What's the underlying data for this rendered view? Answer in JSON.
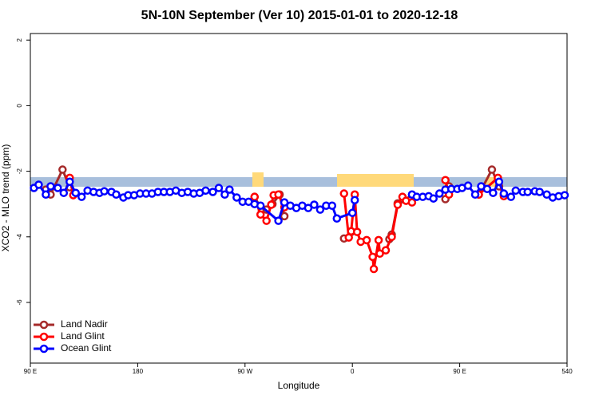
{
  "chart_data": {
    "type": "line",
    "title": "5N-10N September (Ver 10)   2015-01-01 to 2020-12-18",
    "x_label": "Longitude",
    "y_label": "XCO2 - MLO trend (ppm)",
    "xlim": [
      90,
      540
    ],
    "ylim": [
      -7.85,
      2.2
    ],
    "xticks": [
      {
        "value": 90,
        "label": "90 E"
      },
      180,
      {
        "value": 270,
        "label": "90 W"
      },
      {
        "value": 360,
        "label": "0"
      },
      {
        "value": 450,
        "label": "90 E"
      },
      540
    ],
    "yticks": [
      2,
      0,
      -2,
      -4,
      -6
    ],
    "legend": "bottom-left",
    "series": [
      {
        "name": "Land Nadir",
        "color": "#a52a2a",
        "x": [
          103,
          107,
          117,
          123,
          127,
          null,
          278,
          284,
          288,
          293,
          299,
          303,
          null,
          353,
          359,
          null,
          391,
          393,
          398,
          408,
          null,
          438,
          441,
          null,
          466,
          477,
          483,
          487
        ],
        "values": [
          -2.56,
          -2.71,
          -1.95,
          -2.49,
          -2.68,
          null,
          -2.78,
          -3.17,
          -3.17,
          -3.0,
          -2.71,
          -3.37,
          null,
          -4.05,
          -3.85,
          null,
          -4.07,
          -3.93,
          -2.98,
          -2.88,
          null,
          -2.85,
          -2.46,
          null,
          -2.71,
          -1.95,
          -2.46,
          -2.71
        ]
      },
      {
        "name": "Land Glint",
        "color": "#ff0000",
        "x": [
          123,
          126,
          null,
          278,
          283,
          288,
          292,
          294,
          298,
          303,
          null,
          353,
          357,
          359,
          362,
          364,
          367,
          372,
          377,
          378,
          382,
          383,
          388,
          393,
          398,
          402,
          405,
          410,
          null,
          438,
          441,
          null,
          466,
          482,
          487
        ],
        "values": [
          -2.2,
          -2.73,
          null,
          -2.78,
          -3.32,
          -3.51,
          -3.02,
          -2.73,
          -2.71,
          -3.1,
          null,
          -2.68,
          -4.02,
          -3.83,
          -2.71,
          -3.85,
          -4.15,
          -4.1,
          -4.61,
          -4.98,
          -4.1,
          -4.51,
          -4.41,
          -4.0,
          -3.02,
          -2.78,
          -2.9,
          -2.95,
          null,
          -2.27,
          -2.71,
          null,
          -2.71,
          -2.2,
          -2.76
        ]
      },
      {
        "name": "Ocean Glint",
        "color": "#0000ff",
        "x": [
          93,
          97,
          103,
          107,
          113,
          118,
          123,
          128,
          133,
          138,
          143,
          148,
          152,
          158,
          162,
          168,
          172,
          177,
          182,
          187,
          192,
          197,
          202,
          207,
          212,
          217,
          222,
          227,
          232,
          237,
          243,
          248,
          253,
          257,
          263,
          268,
          273,
          278,
          283,
          298,
          303,
          308,
          313,
          318,
          323,
          328,
          333,
          338,
          343,
          347,
          360,
          362,
          null,
          410,
          414,
          419,
          424,
          428,
          433,
          438,
          443,
          448,
          452,
          457,
          463,
          468,
          473,
          478,
          483,
          487,
          493,
          497,
          503,
          507,
          513,
          517,
          523,
          528,
          533,
          538
        ],
        "values": [
          -2.51,
          -2.41,
          -2.71,
          -2.46,
          -2.51,
          -2.66,
          -2.32,
          -2.66,
          -2.78,
          -2.59,
          -2.63,
          -2.66,
          -2.61,
          -2.63,
          -2.71,
          -2.8,
          -2.73,
          -2.73,
          -2.68,
          -2.68,
          -2.68,
          -2.63,
          -2.63,
          -2.63,
          -2.59,
          -2.66,
          -2.63,
          -2.68,
          -2.66,
          -2.59,
          -2.63,
          -2.51,
          -2.71,
          -2.56,
          -2.8,
          -2.93,
          -2.93,
          -3.0,
          -3.05,
          -3.51,
          -2.95,
          -3.05,
          -3.12,
          -3.05,
          -3.12,
          -3.02,
          -3.17,
          -3.05,
          -3.05,
          -3.44,
          -3.27,
          -2.88,
          null,
          -2.71,
          -2.78,
          -2.78,
          -2.76,
          -2.83,
          -2.68,
          -2.56,
          -2.54,
          -2.54,
          -2.51,
          -2.44,
          -2.71,
          -2.46,
          -2.54,
          -2.66,
          -2.32,
          -2.68,
          -2.78,
          -2.59,
          -2.63,
          -2.63,
          -2.61,
          -2.63,
          -2.71,
          -2.8,
          -2.76,
          -2.73
        ]
      }
    ]
  }
}
